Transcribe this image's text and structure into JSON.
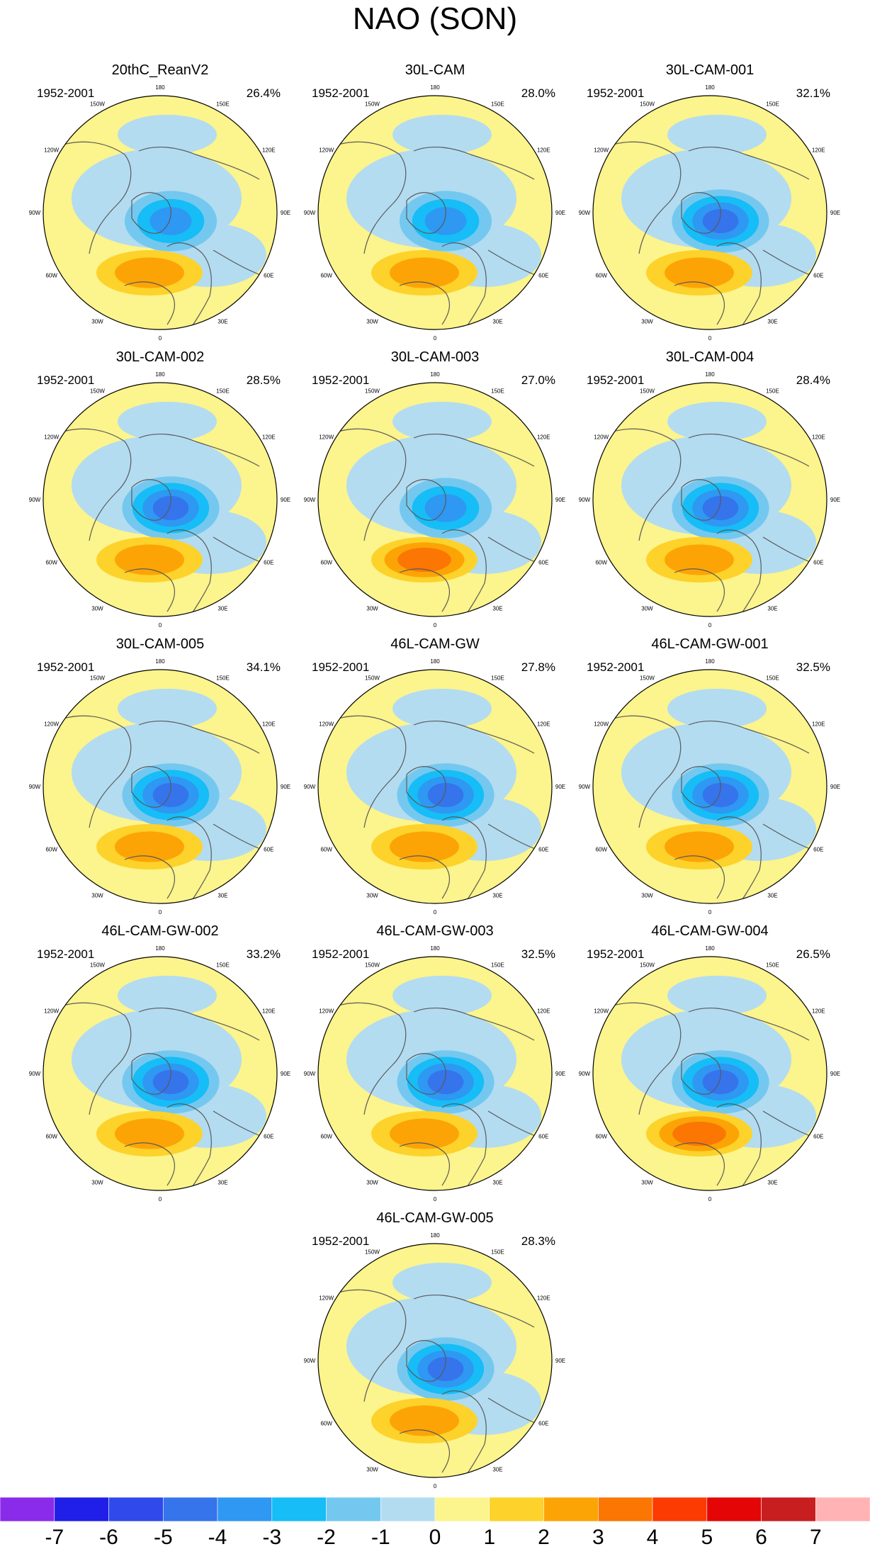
{
  "title": "NAO (SON)",
  "colors": {
    "land_line": "#5a5a5a",
    "map_edge": "#000000",
    "bin_colors": [
      "#8b2bea",
      "#1f1fe8",
      "#2f49ea",
      "#3574eb",
      "#2e98f3",
      "#16bdf6",
      "#74c8ef",
      "#b3dcf1",
      "#fcf48c",
      "#fdd22a",
      "#fca406",
      "#fc7603",
      "#fb3b02",
      "#e40607",
      "#c81e1f",
      "#ffb3b4"
    ]
  },
  "colorbar": {
    "ticks": [
      "-7",
      "-6",
      "-5",
      "-4",
      "-3",
      "-2",
      "-1",
      "0",
      "1",
      "2",
      "3",
      "4",
      "5",
      "6",
      "7"
    ]
  },
  "grid_labels": {
    "lon_180": "180",
    "lon_150w": "150W",
    "lon_150e": "150E",
    "lon_120w": "120W",
    "lon_120e": "120E",
    "lon_90w": "90W",
    "lon_90e": "90E",
    "lon_60w": "60W",
    "lon_60e": "60E",
    "lon_30w": "30W",
    "lon_30e": "30E",
    "lon_0": "0"
  },
  "panels": [
    {
      "name": "20thC_ReanV2",
      "years": "1952-2001",
      "pct": "26.4%",
      "north_min": -3,
      "atlantic_max": 2
    },
    {
      "name": "30L-CAM",
      "years": "1952-2001",
      "pct": "28.0%",
      "north_min": -3,
      "atlantic_max": 2
    },
    {
      "name": "30L-CAM-001",
      "years": "1952-2001",
      "pct": "32.1%",
      "north_min": -4,
      "atlantic_max": 2
    },
    {
      "name": "30L-CAM-002",
      "years": "1952-2001",
      "pct": "28.5%",
      "north_min": -4,
      "atlantic_max": 2
    },
    {
      "name": "30L-CAM-003",
      "years": "1952-2001",
      "pct": "27.0%",
      "north_min": -3,
      "atlantic_max": 3
    },
    {
      "name": "30L-CAM-004",
      "years": "1952-2001",
      "pct": "28.4%",
      "north_min": -4,
      "atlantic_max": 2
    },
    {
      "name": "30L-CAM-005",
      "years": "1952-2001",
      "pct": "34.1%",
      "north_min": -4,
      "atlantic_max": 2
    },
    {
      "name": "46L-CAM-GW",
      "years": "1952-2001",
      "pct": "27.8%",
      "north_min": -4,
      "atlantic_max": 2
    },
    {
      "name": "46L-CAM-GW-001",
      "years": "1952-2001",
      "pct": "32.5%",
      "north_min": -4,
      "atlantic_max": 2
    },
    {
      "name": "46L-CAM-GW-002",
      "years": "1952-2001",
      "pct": "33.2%",
      "north_min": -4,
      "atlantic_max": 2
    },
    {
      "name": "46L-CAM-GW-003",
      "years": "1952-2001",
      "pct": "32.5%",
      "north_min": -4,
      "atlantic_max": 2
    },
    {
      "name": "46L-CAM-GW-004",
      "years": "1952-2001",
      "pct": "26.5%",
      "north_min": -4,
      "atlantic_max": 3
    },
    {
      "name": "46L-CAM-GW-005",
      "years": "1952-2001",
      "pct": "28.3%",
      "north_min": -4,
      "atlantic_max": 2
    }
  ]
}
